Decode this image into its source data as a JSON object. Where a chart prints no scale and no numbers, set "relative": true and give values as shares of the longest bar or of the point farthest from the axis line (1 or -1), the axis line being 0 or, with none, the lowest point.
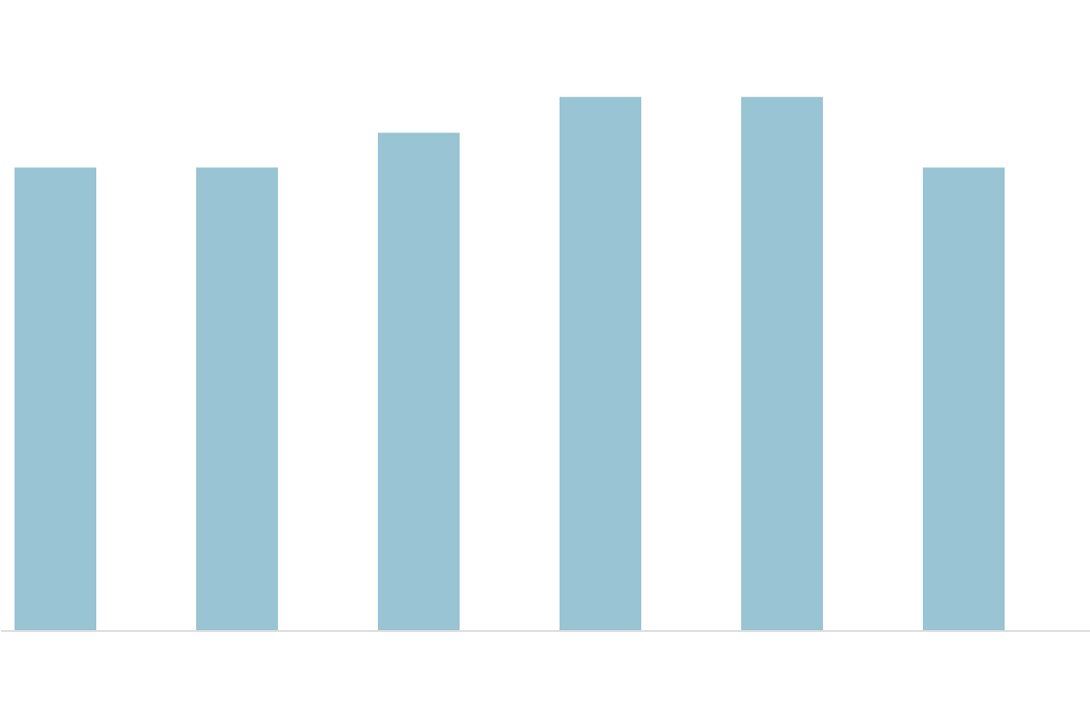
{
  "chart_data": {
    "type": "bar",
    "relative": true,
    "categories": [
      null,
      null,
      null,
      null,
      null,
      null
    ],
    "values": [
      0.868,
      0.868,
      0.933,
      1,
      1,
      0.868
    ],
    "color": "#98c4d4"
  }
}
